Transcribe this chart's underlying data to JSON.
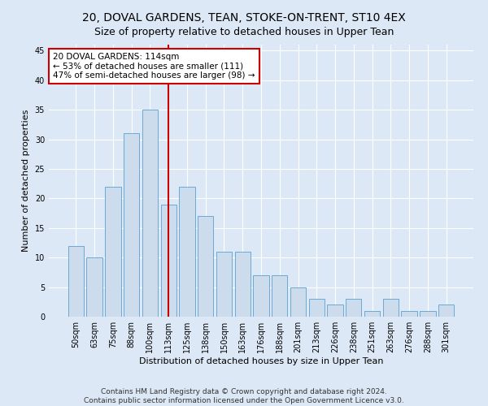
{
  "title": "20, DOVAL GARDENS, TEAN, STOKE-ON-TRENT, ST10 4EX",
  "subtitle": "Size of property relative to detached houses in Upper Tean",
  "xlabel": "Distribution of detached houses by size in Upper Tean",
  "ylabel": "Number of detached properties",
  "categories": [
    "50sqm",
    "63sqm",
    "75sqm",
    "88sqm",
    "100sqm",
    "113sqm",
    "125sqm",
    "138sqm",
    "150sqm",
    "163sqm",
    "176sqm",
    "188sqm",
    "201sqm",
    "213sqm",
    "226sqm",
    "238sqm",
    "251sqm",
    "263sqm",
    "276sqm",
    "288sqm",
    "301sqm"
  ],
  "values": [
    12,
    10,
    22,
    31,
    35,
    19,
    22,
    17,
    11,
    11,
    7,
    7,
    5,
    3,
    2,
    3,
    1,
    3,
    1,
    1,
    2
  ],
  "bar_color": "#ccdced",
  "bar_edge_color": "#6aaad4",
  "vline_x": 5,
  "vline_color": "#cc0000",
  "annotation_text": "20 DOVAL GARDENS: 114sqm\n← 53% of detached houses are smaller (111)\n47% of semi-detached houses are larger (98) →",
  "annotation_box_color": "#ffffff",
  "annotation_box_edge_color": "#cc0000",
  "ylim": [
    0,
    46
  ],
  "yticks": [
    0,
    5,
    10,
    15,
    20,
    25,
    30,
    35,
    40,
    45
  ],
  "footer_line1": "Contains HM Land Registry data © Crown copyright and database right 2024.",
  "footer_line2": "Contains public sector information licensed under the Open Government Licence v3.0.",
  "title_fontsize": 10,
  "axis_label_fontsize": 8,
  "tick_fontsize": 7,
  "annotation_fontsize": 7.5,
  "footer_fontsize": 6.5,
  "background_color": "#dce8f5",
  "plot_bg_color": "#dce8f5",
  "grid_color": "#ffffff"
}
